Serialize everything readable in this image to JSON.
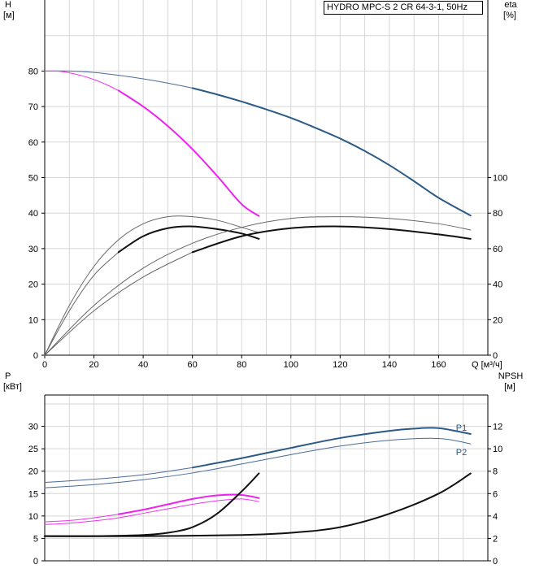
{
  "chart_data": [
    {
      "id": "hq",
      "type": "line",
      "title": "HYDRO MPC-S 2 CR 64-3-1, 50Hz",
      "xlabel": "Q [м³/ч]",
      "ylabel_left": "H\n[м]",
      "ylabel_right": "eta\n[%]",
      "xlim": [
        0,
        180
      ],
      "ylim_left": [
        0,
        100
      ],
      "ylim_right": [
        0,
        200
      ],
      "x_ticks": [
        0,
        20,
        40,
        60,
        80,
        100,
        120,
        140,
        160
      ],
      "y_ticks_left": [
        0,
        10,
        20,
        30,
        40,
        50,
        60,
        70,
        80
      ],
      "y_ticks_right": [
        0,
        20,
        40,
        60,
        80,
        100
      ],
      "grid": true,
      "series": [
        {
          "name": "H two pumps (thin)",
          "axis": "left",
          "color": "#4a6a9a",
          "width": 1,
          "x": [
            0,
            10,
            20,
            30,
            40,
            50,
            60
          ],
          "y": [
            80,
            80,
            79.6,
            78.8,
            77.8,
            76.6,
            75.2
          ]
        },
        {
          "name": "H two pumps",
          "axis": "left",
          "color": "#2b5a85",
          "width": 2,
          "x": [
            60,
            70,
            80,
            90,
            100,
            110,
            120,
            130,
            140,
            150,
            160,
            173
          ],
          "y": [
            75.2,
            73.4,
            71.4,
            69.2,
            66.8,
            64.0,
            61.0,
            57.5,
            53.5,
            49.0,
            44.3,
            39.3
          ]
        },
        {
          "name": "H one pump (thin)",
          "axis": "left",
          "color": "#ee33ee",
          "width": 1,
          "x": [
            0,
            5,
            10,
            15,
            20,
            25,
            30
          ],
          "y": [
            80,
            80,
            79.5,
            78.7,
            77.6,
            76.2,
            74.5
          ]
        },
        {
          "name": "H one pump",
          "axis": "left",
          "color": "#ee22ee",
          "width": 2,
          "x": [
            30,
            40,
            50,
            60,
            70,
            80,
            87
          ],
          "y": [
            74.5,
            70.0,
            64.5,
            58.0,
            50.5,
            42.5,
            39.2
          ]
        },
        {
          "name": "eta one pump (thin upper)",
          "axis": "right",
          "color": "#666666",
          "width": 1,
          "x": [
            0,
            10,
            20,
            30,
            40,
            50,
            60,
            70,
            80,
            87
          ],
          "y": [
            0,
            28,
            50,
            65,
            74,
            78,
            78,
            76,
            72,
            69
          ]
        },
        {
          "name": "eta one pump (thin lower)",
          "axis": "right",
          "color": "#666666",
          "width": 1,
          "x": [
            0,
            10,
            20,
            30
          ],
          "y": [
            0,
            25,
            45,
            58
          ]
        },
        {
          "name": "eta one pump",
          "axis": "right",
          "color": "#111111",
          "width": 2,
          "x": [
            30,
            40,
            50,
            60,
            70,
            80,
            87
          ],
          "y": [
            58,
            67,
            71.5,
            72.5,
            71,
            68.5,
            65.5
          ]
        },
        {
          "name": "eta two pumps (thin upper)",
          "axis": "right",
          "color": "#666666",
          "width": 1,
          "x": [
            0,
            20,
            40,
            60,
            80,
            100,
            120,
            140,
            160,
            173
          ],
          "y": [
            0,
            28,
            49,
            63,
            72,
            77,
            78,
            77,
            74,
            70.5
          ]
        },
        {
          "name": "eta two pumps (thin lower)",
          "axis": "right",
          "color": "#666666",
          "width": 1,
          "x": [
            0,
            20,
            40,
            60
          ],
          "y": [
            0,
            25,
            44,
            58
          ]
        },
        {
          "name": "eta two pumps",
          "axis": "right",
          "color": "#111111",
          "width": 2,
          "x": [
            60,
            80,
            100,
            120,
            140,
            160,
            173
          ],
          "y": [
            58,
            67,
            71.5,
            72.5,
            71,
            68,
            65.5
          ]
        }
      ]
    },
    {
      "id": "power",
      "type": "line",
      "xlabel": "",
      "ylabel_left": "P\n[кВт]",
      "ylabel_right": "NPSH\n[м]",
      "xlim": [
        0,
        180
      ],
      "ylim_left": [
        0,
        37
      ],
      "ylim_right": [
        0,
        14.8
      ],
      "y_ticks_left": [
        0,
        5,
        10,
        15,
        20,
        25,
        30
      ],
      "y_ticks_right": [
        0,
        2,
        4,
        6,
        8,
        10,
        12
      ],
      "grid": true,
      "series": [
        {
          "name": "P1",
          "label": "P1",
          "axis": "left",
          "color": "#2b5a85",
          "width": 2,
          "x": [
            60,
            80,
            100,
            120,
            140,
            150,
            160,
            173
          ],
          "y": [
            20.8,
            22.9,
            25.2,
            27.4,
            29.0,
            29.5,
            29.6,
            28.3
          ]
        },
        {
          "name": "P1 (thin)",
          "axis": "left",
          "color": "#4a6a9a",
          "width": 1,
          "x": [
            0,
            20,
            40,
            60
          ],
          "y": [
            17.5,
            18.2,
            19.2,
            20.8
          ]
        },
        {
          "name": "P2",
          "label": "P2",
          "axis": "left",
          "color": "#4a6a9a",
          "width": 1,
          "x": [
            0,
            20,
            40,
            60,
            80,
            100,
            120,
            140,
            160,
            173
          ],
          "y": [
            16.3,
            17.0,
            18.1,
            19.6,
            21.6,
            23.7,
            25.6,
            26.9,
            27.3,
            26.1
          ]
        },
        {
          "name": "P1 one pump (thin)",
          "axis": "left",
          "color": "#ee33ee",
          "width": 1,
          "x": [
            0,
            10,
            20,
            30
          ],
          "y": [
            8.7,
            9.0,
            9.6,
            10.4
          ]
        },
        {
          "name": "P1 one pump",
          "axis": "left",
          "color": "#ee22ee",
          "width": 2,
          "x": [
            30,
            40,
            50,
            60,
            70,
            80,
            87
          ],
          "y": [
            10.4,
            11.4,
            12.6,
            13.8,
            14.6,
            14.7,
            14.0
          ]
        },
        {
          "name": "P2 one pump",
          "axis": "left",
          "color": "#ee33ee",
          "width": 1,
          "x": [
            0,
            10,
            20,
            30,
            40,
            50,
            60,
            70,
            80,
            87
          ],
          "y": [
            8.1,
            8.4,
            8.9,
            9.6,
            10.6,
            11.6,
            12.6,
            13.4,
            13.8,
            13.2
          ]
        },
        {
          "name": "NPSH one pump",
          "axis": "right",
          "color": "#111111",
          "width": 2,
          "x": [
            0,
            20,
            40,
            50,
            60,
            70,
            80,
            87
          ],
          "y": [
            2.2,
            2.2,
            2.3,
            2.5,
            3.0,
            4.2,
            6.2,
            7.8
          ]
        },
        {
          "name": "NPSH two pumps",
          "axis": "right",
          "color": "#111111",
          "width": 2,
          "x": [
            0,
            40,
            80,
            100,
            120,
            140,
            160,
            173
          ],
          "y": [
            2.2,
            2.2,
            2.3,
            2.5,
            3.0,
            4.2,
            6.0,
            7.8
          ]
        }
      ]
    }
  ]
}
